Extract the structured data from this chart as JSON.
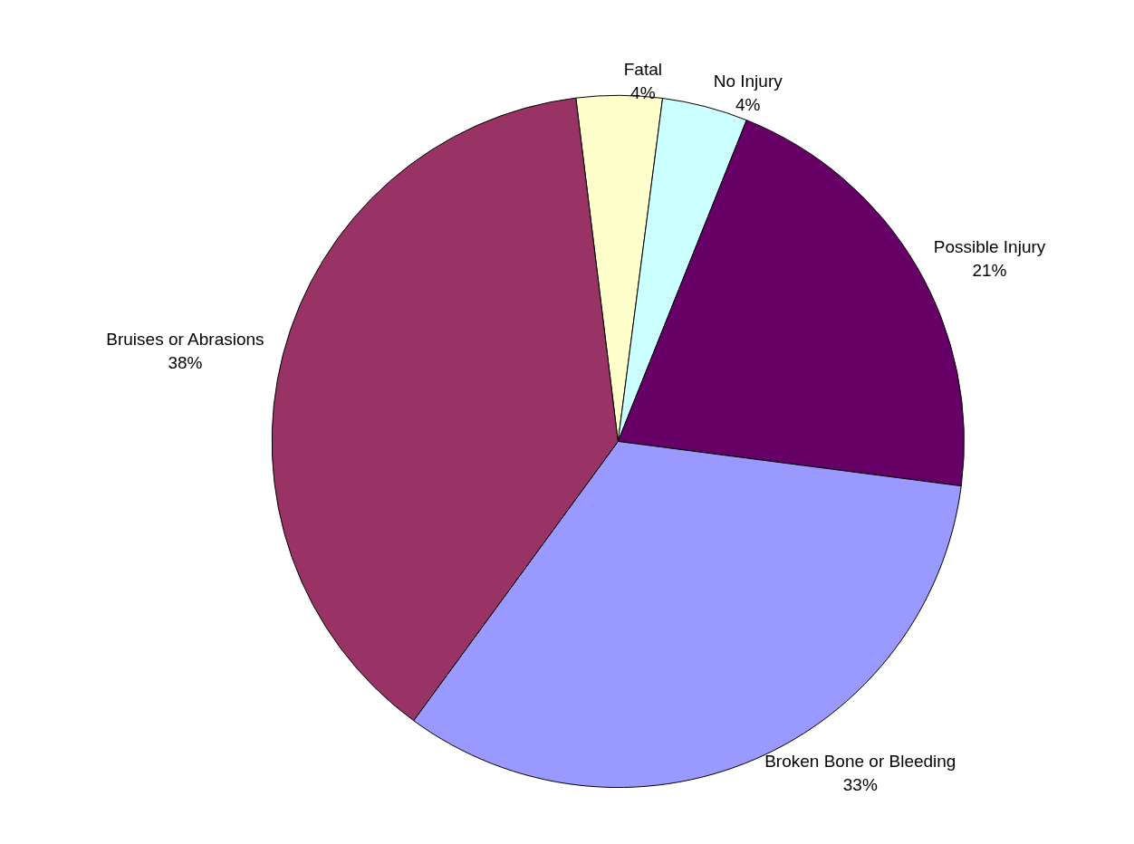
{
  "chart_data": {
    "type": "pie",
    "categories": [
      "Fatal",
      "No Injury",
      "Possible Injury",
      "Broken Bone or Bleeding",
      "Bruises or Abrasions"
    ],
    "values": [
      4,
      4,
      21,
      33,
      38
    ],
    "value_labels": [
      "4%",
      "4%",
      "21%",
      "33%",
      "38%"
    ],
    "colors": [
      "#ffffcc",
      "#ccffff",
      "#660066",
      "#9999ff",
      "#993366"
    ],
    "legend": false
  }
}
